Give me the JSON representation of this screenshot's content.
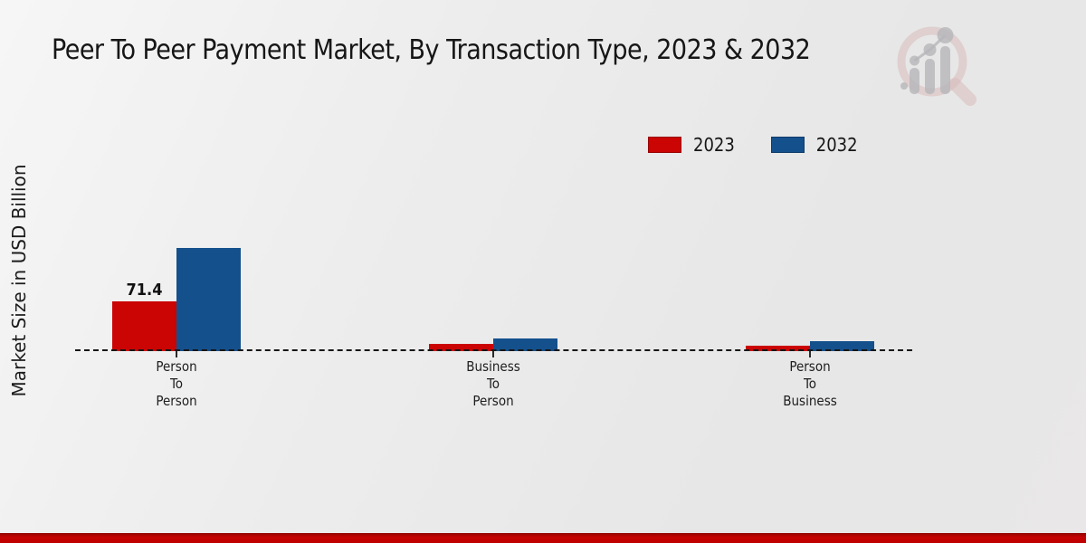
{
  "header": {
    "title": "Peer To Peer Payment Market, By Transaction Type, 2023 & 2032"
  },
  "axes": {
    "ylabel": "Market Size in USD Billion"
  },
  "legend": {
    "items": [
      {
        "label": "2023",
        "color": "#cb0404"
      },
      {
        "label": "2032",
        "color": "#14508c"
      }
    ]
  },
  "chart_data": {
    "type": "bar",
    "title": "Peer To Peer Payment Market, By Transaction Type, 2023 & 2032",
    "xlabel": "",
    "ylabel": "Market Size in USD Billion",
    "categories": [
      "Person To Person",
      "Business To Person",
      "Person To Business"
    ],
    "xtick_lines": [
      [
        "Person",
        "To",
        "Person"
      ],
      [
        "Business",
        "To",
        "Person"
      ],
      [
        "Person",
        "To",
        "Business"
      ]
    ],
    "series": [
      {
        "name": "2023",
        "color": "#cb0404",
        "values": [
          71.4,
          10.5,
          7.5
        ]
      },
      {
        "name": "2032",
        "color": "#14508c",
        "values": [
          148,
          18,
          14
        ]
      }
    ],
    "data_labels": [
      {
        "series": "2023",
        "category": "Person To Person",
        "text": "71.4"
      }
    ],
    "baseline": 0,
    "ylim": [
      0,
      160
    ],
    "grid": false,
    "legend_position": "top-right",
    "baseline_style": "black-dashed"
  },
  "footer": {
    "accent_color": "#c00000"
  },
  "watermark": {
    "icon": "magnifier-bar-chart-logo"
  }
}
